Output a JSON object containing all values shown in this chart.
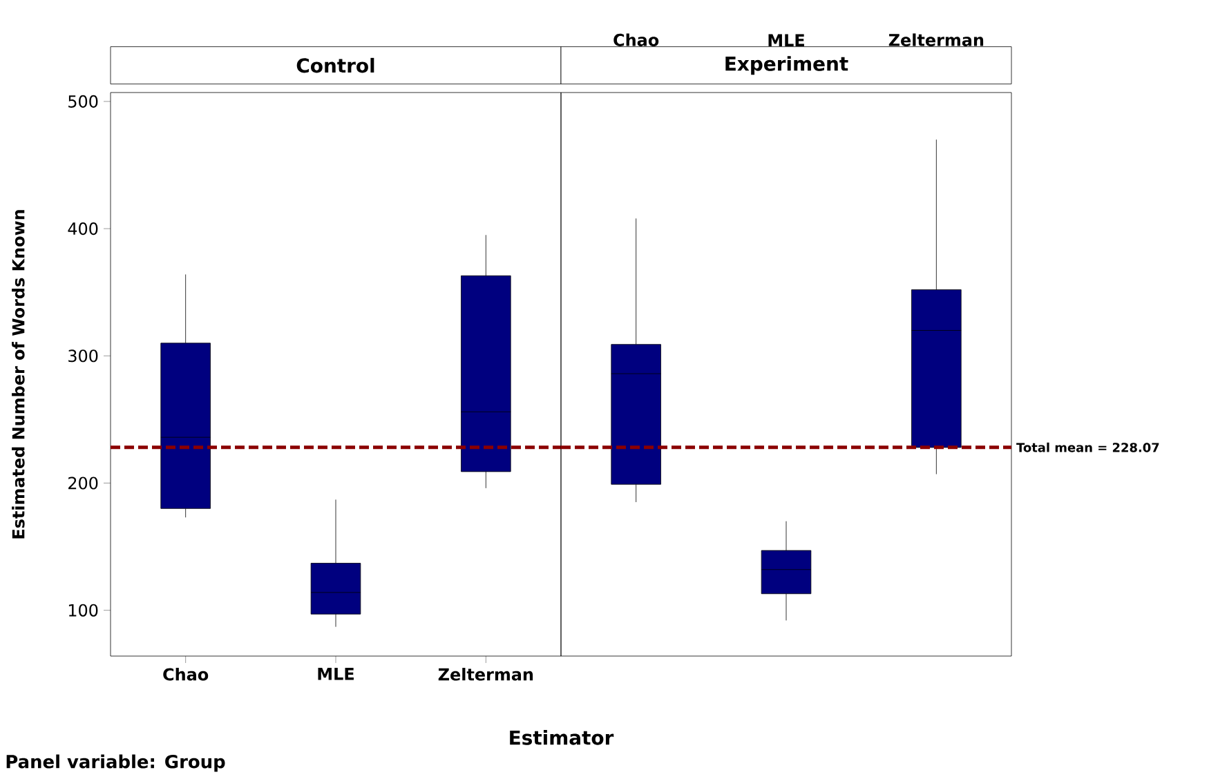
{
  "chart_data": [
    {
      "type": "box",
      "title": "Control",
      "xlabel": "Estimator",
      "ylabel": "Estimated Number of Words Known",
      "categories": [
        "Chao",
        "MLE",
        "Zelterman"
      ],
      "color": "#00007f",
      "ylim": [
        64,
        507
      ],
      "yticks": [
        100,
        200,
        300,
        400,
        500
      ],
      "boxes": [
        {
          "low": 173,
          "q1": 180,
          "median": 236,
          "q3": 310,
          "high": 364
        },
        {
          "low": 87,
          "q1": 97,
          "median": 114,
          "q3": 137,
          "high": 187
        },
        {
          "low": 196,
          "q1": 209,
          "median": 256,
          "q3": 363,
          "high": 395
        }
      ],
      "ref_lines": [
        {
          "axis": "y",
          "value": 228.07,
          "color": "#8b0000",
          "line_style": "dashed"
        }
      ],
      "annotations": [
        "Panel variable: Group"
      ]
    },
    {
      "type": "box",
      "title": "Experiment",
      "categories": [
        "Chao",
        "MLE",
        "Zelterman"
      ],
      "color": "#00007f",
      "ylim": [
        64,
        507
      ],
      "tick_labels": "x",
      "boxes": [
        {
          "low": 185,
          "q1": 199,
          "median": 286,
          "q3": 309,
          "high": 408
        },
        {
          "low": 92,
          "q1": 113,
          "median": 132,
          "q3": 147,
          "high": 170
        },
        {
          "low": 207,
          "q1": 228,
          "median": 320,
          "q3": 352,
          "high": 470
        }
      ],
      "ref_lines": [
        {
          "axis": "y",
          "value": 228.07,
          "color": "#8b0000",
          "line_style": "dashed",
          "label": "Total mean = 228.07"
        }
      ]
    }
  ]
}
